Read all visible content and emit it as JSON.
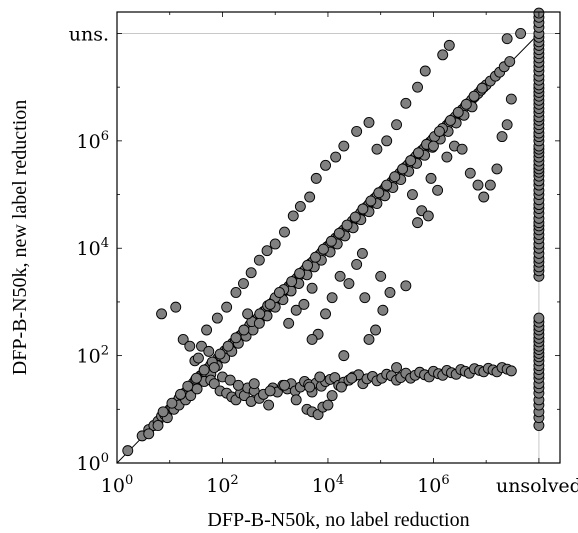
{
  "chart_data": {
    "type": "scatter",
    "title": "",
    "xlabel": "DFP-B-N50k, no label reduction",
    "ylabel": "DFP-B-N50k, new label reduction",
    "scale": "log10",
    "xlim": [
      1,
      "unsolved"
    ],
    "ylim": [
      1,
      "uns."
    ],
    "x_ticks": [
      {
        "base": "10",
        "exp": "0"
      },
      {
        "base": "10",
        "exp": "2"
      },
      {
        "base": "10",
        "exp": "4"
      },
      {
        "base": "10",
        "exp": "6"
      },
      {
        "text": "unsolved"
      }
    ],
    "y_ticks": [
      {
        "base": "10",
        "exp": "0"
      },
      {
        "base": "10",
        "exp": "2"
      },
      {
        "base": "10",
        "exp": "4"
      },
      {
        "base": "10",
        "exp": "6"
      },
      {
        "text": "uns."
      }
    ],
    "grid": "unsolved lines only",
    "diagonal": true,
    "marker_color": "#808080",
    "points": [
      [
        1.6,
        1.7
      ],
      [
        3,
        3.2
      ],
      [
        4,
        4.2
      ],
      [
        5,
        5
      ],
      [
        6,
        6
      ],
      [
        7,
        7.5
      ],
      [
        8,
        8
      ],
      [
        9,
        9
      ],
      [
        10,
        10
      ],
      [
        11,
        11
      ],
      [
        12,
        13
      ],
      [
        14,
        14
      ],
      [
        15,
        16
      ],
      [
        17,
        18
      ],
      [
        19,
        20
      ],
      [
        21,
        22
      ],
      [
        23,
        26
      ],
      [
        26,
        28
      ],
      [
        28,
        31
      ],
      [
        31,
        36
      ],
      [
        35,
        38
      ],
      [
        38,
        42
      ],
      [
        42,
        45
      ],
      [
        46,
        50
      ],
      [
        50,
        56
      ],
      [
        56,
        60
      ],
      [
        60,
        67
      ],
      [
        68,
        73
      ],
      [
        75,
        80
      ],
      [
        82,
        90
      ],
      [
        90,
        100
      ],
      [
        100,
        110
      ],
      [
        110,
        123
      ],
      [
        125,
        135
      ],
      [
        140,
        150
      ],
      [
        155,
        170
      ],
      [
        175,
        185
      ],
      [
        190,
        210
      ],
      [
        210,
        230
      ],
      [
        240,
        260
      ],
      [
        270,
        290
      ],
      [
        300,
        320
      ],
      [
        330,
        370
      ],
      [
        380,
        410
      ],
      [
        430,
        460
      ],
      [
        480,
        520
      ],
      [
        540,
        590
      ],
      [
        600,
        660
      ],
      [
        680,
        730
      ],
      [
        760,
        820
      ],
      [
        850,
        920
      ],
      [
        950,
        1050
      ],
      [
        1100,
        1200
      ],
      [
        1250,
        1350
      ],
      [
        1400,
        1500
      ],
      [
        1600,
        1700
      ],
      [
        1800,
        1950
      ],
      [
        2000,
        2200
      ],
      [
        2300,
        2500
      ],
      [
        2600,
        2800
      ],
      [
        2900,
        3200
      ],
      [
        3300,
        3600
      ],
      [
        3700,
        4000
      ],
      [
        4200,
        4600
      ],
      [
        4700,
        5200
      ],
      [
        5300,
        5800
      ],
      [
        6000,
        6600
      ],
      [
        6800,
        7400
      ],
      [
        7600,
        8400
      ],
      [
        8600,
        9500
      ],
      [
        9700,
        10700
      ],
      [
        11000,
        12000
      ],
      [
        12500,
        13500
      ],
      [
        14000,
        15500
      ],
      [
        16000,
        17500
      ],
      [
        18000,
        20000
      ],
      [
        20000,
        22000
      ],
      [
        23000,
        25000
      ],
      [
        26000,
        28000
      ],
      [
        29000,
        32000
      ],
      [
        33000,
        36000
      ],
      [
        37000,
        40000
      ],
      [
        42000,
        46000
      ],
      [
        47000,
        52000
      ],
      [
        53000,
        58000
      ],
      [
        60000,
        66000
      ],
      [
        68000,
        74000
      ],
      [
        76000,
        84000
      ],
      [
        86000,
        95000
      ],
      [
        97000,
        107000
      ],
      [
        110000,
        120000
      ],
      [
        125000,
        140000
      ],
      [
        140000,
        150000
      ],
      [
        160000,
        170000
      ],
      [
        180000,
        200000
      ],
      [
        200000,
        220000
      ],
      [
        230000,
        250000
      ],
      [
        260000,
        280000
      ],
      [
        290000,
        320000
      ],
      [
        330000,
        360000
      ],
      [
        370000,
        400000
      ],
      [
        420000,
        460000
      ],
      [
        470000,
        520000
      ],
      [
        530000,
        580000
      ],
      [
        600000,
        660000
      ],
      [
        680000,
        740000
      ],
      [
        760000,
        840000
      ],
      [
        860000,
        950000
      ],
      [
        970000,
        1070000
      ],
      [
        1100000,
        1200000
      ],
      [
        1250000,
        1350000
      ],
      [
        1400000,
        1500000
      ],
      [
        1600000,
        1700000
      ],
      [
        1800000,
        1950000
      ],
      [
        2000000,
        2200000
      ],
      [
        2300000,
        2500000
      ],
      [
        2600000,
        2800000
      ],
      [
        3000000,
        3300000
      ],
      [
        3500000,
        3800000
      ],
      [
        4000000,
        4400000
      ],
      [
        4600000,
        5000000
      ],
      [
        5300000,
        5800000
      ],
      [
        6000000,
        6600000
      ],
      [
        7000000,
        7600000
      ],
      [
        8000000,
        8800000
      ],
      [
        9000000,
        10000000
      ],
      [
        10000000,
        11000000
      ],
      [
        12000000,
        13000000
      ],
      [
        15000000,
        16000000
      ],
      [
        18000000,
        19000000
      ],
      [
        22000000,
        24000000
      ],
      [
        28000000,
        30000000
      ],
      [
        4,
        3.5
      ],
      [
        6,
        5
      ],
      [
        9,
        7
      ],
      [
        12,
        10
      ],
      [
        15,
        12
      ],
      [
        20,
        15
      ],
      [
        25,
        18
      ],
      [
        33,
        24
      ],
      [
        45,
        33
      ],
      [
        60,
        45
      ],
      [
        80,
        65
      ],
      [
        110,
        90
      ],
      [
        150,
        120
      ],
      [
        200,
        170
      ],
      [
        280,
        230
      ],
      [
        380,
        300
      ],
      [
        500,
        420
      ],
      [
        700,
        550
      ],
      [
        1000,
        800
      ],
      [
        1400,
        1100
      ],
      [
        2000,
        1600
      ],
      [
        2800,
        2200
      ],
      [
        4000,
        3200
      ],
      [
        5500,
        4500
      ],
      [
        7500,
        6000
      ],
      [
        11000,
        8500
      ],
      [
        15000,
        12000
      ],
      [
        21000,
        17000
      ],
      [
        30000,
        24000
      ],
      [
        42000,
        34000
      ],
      [
        60000,
        48000
      ],
      [
        85000,
        68000
      ],
      [
        120000,
        95000
      ],
      [
        170000,
        135000
      ],
      [
        240000,
        190000
      ],
      [
        340000,
        270000
      ],
      [
        480000,
        380000
      ],
      [
        680000,
        540000
      ],
      [
        960000,
        760000
      ],
      [
        1350000,
        1080000
      ],
      [
        1900000,
        1500000
      ],
      [
        2700000,
        2150000
      ],
      [
        3800000,
        3000000
      ],
      [
        5400000,
        4300000
      ],
      [
        7.5,
        9
      ],
      [
        11,
        13
      ],
      [
        16,
        19
      ],
      [
        22,
        27
      ],
      [
        32,
        38
      ],
      [
        45,
        54
      ],
      [
        64,
        76
      ],
      [
        90,
        107
      ],
      [
        128,
        150
      ],
      [
        180,
        215
      ],
      [
        255,
        300
      ],
      [
        360,
        430
      ],
      [
        510,
        600
      ],
      [
        720,
        850
      ],
      [
        1000,
        1200
      ],
      [
        1450,
        1700
      ],
      [
        2050,
        2400
      ],
      [
        2900,
        3400
      ],
      [
        4100,
        4800
      ],
      [
        5800,
        6800
      ],
      [
        8200,
        9600
      ],
      [
        11600,
        13500
      ],
      [
        16400,
        19000
      ],
      [
        23000,
        27000
      ],
      [
        33000,
        38000
      ],
      [
        46000,
        54000
      ],
      [
        65000,
        76000
      ],
      [
        92000,
        108000
      ],
      [
        130000,
        150000
      ],
      [
        185000,
        215000
      ],
      [
        260000,
        300000
      ],
      [
        370000,
        430000
      ],
      [
        520000,
        600000
      ],
      [
        740000,
        860000
      ],
      [
        1050000,
        1200000
      ],
      [
        1480000,
        1700000
      ],
      [
        2100000,
        2400000
      ],
      [
        2950000,
        3400000
      ],
      [
        4200000,
        4800000
      ],
      [
        5900000,
        6800000
      ],
      [
        8400000,
        9600000
      ],
      [
        30,
        80
      ],
      [
        40,
        150
      ],
      [
        50,
        300
      ],
      [
        80,
        500
      ],
      [
        120,
        800
      ],
      [
        180,
        1500
      ],
      [
        250,
        2200
      ],
      [
        350,
        3500
      ],
      [
        500,
        6000
      ],
      [
        700,
        9000
      ],
      [
        1000,
        12000
      ],
      [
        1500,
        20000
      ],
      [
        2200,
        40000
      ],
      [
        3000,
        60000
      ],
      [
        4500,
        90000
      ],
      [
        6000,
        200000
      ],
      [
        9000,
        350000
      ],
      [
        14000,
        500000
      ],
      [
        20000,
        800000
      ],
      [
        35000,
        1500000
      ],
      [
        60000,
        2200000
      ],
      [
        85000,
        700000
      ],
      [
        130000,
        1000000
      ],
      [
        200000,
        2000000
      ],
      [
        300000,
        5000000
      ],
      [
        500000,
        10000000
      ],
      [
        700000,
        20000000
      ],
      [
        1500000,
        40000000
      ],
      [
        2000000,
        60000000
      ],
      [
        60,
        35
      ],
      [
        70,
        30
      ],
      [
        90,
        22
      ],
      [
        120,
        20
      ],
      [
        150,
        17
      ],
      [
        180,
        15
      ],
      [
        220,
        20
      ],
      [
        260,
        18
      ],
      [
        300,
        25
      ],
      [
        350,
        14
      ],
      [
        400,
        22
      ],
      [
        500,
        16
      ],
      [
        600,
        19
      ],
      [
        750,
        12
      ],
      [
        900,
        25
      ],
      [
        1100,
        21
      ],
      [
        1400,
        28
      ],
      [
        1700,
        24
      ],
      [
        2000,
        30
      ],
      [
        2400,
        22
      ],
      [
        3000,
        26
      ],
      [
        3600,
        33
      ],
      [
        4300,
        29
      ],
      [
        5000,
        21
      ],
      [
        6000,
        31
      ],
      [
        7500,
        27
      ],
      [
        9000,
        33
      ],
      [
        11000,
        36
      ],
      [
        13500,
        39
      ],
      [
        16000,
        28
      ],
      [
        20000,
        32
      ],
      [
        25000,
        35
      ],
      [
        30000,
        40
      ],
      [
        38000,
        44
      ],
      [
        46000,
        30
      ],
      [
        55000,
        37
      ],
      [
        70000,
        41
      ],
      [
        85000,
        34
      ],
      [
        105000,
        38
      ],
      [
        130000,
        45
      ],
      [
        160000,
        42
      ],
      [
        200000,
        35
      ],
      [
        240000,
        39
      ],
      [
        300000,
        47
      ],
      [
        370000,
        38
      ],
      [
        450000,
        43
      ],
      [
        550000,
        49
      ],
      [
        680000,
        44
      ],
      [
        830000,
        40
      ],
      [
        1000000,
        51
      ],
      [
        1250000,
        46
      ],
      [
        1500000,
        43
      ],
      [
        1800000,
        53
      ],
      [
        2200000,
        48
      ],
      [
        2700000,
        45
      ],
      [
        3300000,
        55
      ],
      [
        4000000,
        51
      ],
      [
        4800000,
        47
      ],
      [
        6000000,
        57
      ],
      [
        7500000,
        53
      ],
      [
        9000000,
        50
      ],
      [
        11000000,
        58
      ],
      [
        13500000,
        54
      ],
      [
        16000000,
        50
      ],
      [
        20000000,
        60
      ],
      [
        25000000,
        56
      ],
      [
        30000000,
        52
      ],
      [
        400,
        30
      ],
      [
        800,
        22
      ],
      [
        1500,
        28
      ],
      [
        2500,
        15
      ],
      [
        4500,
        26
      ],
      [
        7000,
        40
      ],
      [
        12000,
        18
      ],
      [
        18000,
        26
      ],
      [
        28000,
        38
      ],
      [
        4000,
        10
      ],
      [
        5000,
        9
      ],
      [
        6500,
        8
      ],
      [
        8000,
        11
      ],
      [
        10000,
        12
      ],
      [
        7,
        600
      ],
      [
        13,
        800
      ],
      [
        18,
        200
      ],
      [
        24,
        150
      ],
      [
        35,
        90
      ],
      [
        55,
        120
      ],
      [
        70,
        60
      ],
      [
        100,
        40
      ],
      [
        140,
        35
      ],
      [
        200,
        28
      ],
      [
        300,
        600
      ],
      [
        500,
        400
      ],
      [
        800,
        900
      ],
      [
        1200,
        1500
      ],
      [
        1800,
        400
      ],
      [
        2500,
        700
      ],
      [
        3500,
        900
      ],
      [
        5000,
        1800
      ],
      [
        6500,
        250
      ],
      [
        9000,
        600
      ],
      [
        12000,
        1200
      ],
      [
        17000,
        3000
      ],
      [
        25000,
        2200
      ],
      [
        35000,
        5000
      ],
      [
        45000,
        8000
      ],
      [
        60000,
        200
      ],
      [
        80000,
        300
      ],
      [
        110000,
        700
      ],
      [
        150000,
        1500
      ],
      [
        200000,
        60
      ],
      [
        300000,
        2000
      ],
      [
        400000,
        100000
      ],
      [
        600000,
        50000
      ],
      [
        900000,
        200000
      ],
      [
        1200000,
        120000
      ],
      [
        1800000,
        500000
      ],
      [
        2500000,
        800000
      ],
      [
        3500000,
        700000
      ],
      [
        5000000,
        250000
      ],
      [
        7000000,
        150000
      ],
      [
        9000000,
        90000
      ],
      [
        12000000,
        150000
      ],
      [
        16000000,
        300000
      ],
      [
        20000000,
        1200000
      ],
      [
        25000000,
        2000000
      ],
      [
        30000000,
        6000000
      ],
      [
        45000000,
        100000000
      ],
      [
        25000000,
        80000000
      ],
      [
        5000,
        200
      ],
      [
        20000,
        100
      ],
      [
        50000,
        1200
      ],
      [
        100000,
        3000
      ],
      [
        500000,
        30000
      ],
      [
        800000,
        40000
      ],
      [
        1000000,
        800000
      ],
      [
        1300000,
        1500000
      ]
    ],
    "unsolved_x_y_values": [
      5,
      7,
      9,
      12,
      15,
      20,
      25,
      30,
      38,
      45,
      55,
      65,
      80,
      95,
      110,
      130,
      150,
      180,
      210,
      250,
      300,
      350,
      420,
      500,
      3000,
      3800,
      4500,
      5500,
      6500,
      8000,
      10000,
      12000,
      15000,
      18000,
      22000,
      26000,
      30000,
      36000,
      45000,
      55000,
      65000,
      80000,
      100000,
      120000,
      150000,
      180000,
      220000,
      260000,
      300000,
      350000,
      420000,
      500000,
      600000,
      700000,
      800000,
      1000000,
      1200000,
      1400000,
      1700000,
      2000000,
      2400000,
      2800000,
      3400000,
      4000000,
      4800000,
      5700000,
      6800000,
      8000000,
      9500000,
      11000000,
      13500000,
      16000000,
      20000000,
      24000000,
      29000000,
      35000000,
      42000000,
      50000000,
      60000000,
      70000000,
      85000000,
      100000000,
      130000000,
      160000000,
      200000000,
      240000000
    ]
  }
}
